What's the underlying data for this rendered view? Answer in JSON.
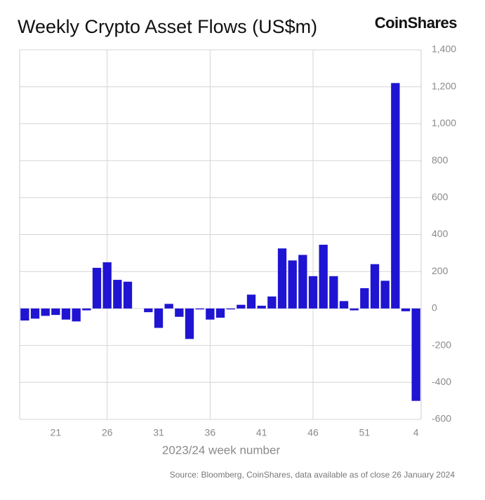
{
  "chart_data": {
    "type": "bar",
    "title": "Weekly Crypto Asset Flows (US$m)",
    "brand": "CoinShares",
    "x_label": "2023/24 week number",
    "source": "Source: Bloomberg, CoinShares, data available as of close 26 January 2024",
    "categories": [
      null,
      null,
      null,
      "21",
      null,
      null,
      null,
      null,
      "26",
      null,
      null,
      null,
      null,
      "31",
      null,
      null,
      null,
      null,
      "36",
      null,
      null,
      null,
      null,
      "41",
      null,
      null,
      null,
      null,
      "46",
      null,
      null,
      null,
      null,
      "51",
      null,
      null,
      null,
      null,
      "4"
    ],
    "values": [
      -65,
      -55,
      -40,
      -35,
      -60,
      -70,
      -10,
      220,
      250,
      155,
      145,
      0,
      -20,
      -105,
      25,
      -45,
      -165,
      -5,
      -60,
      -50,
      -5,
      20,
      75,
      15,
      65,
      325,
      260,
      290,
      175,
      345,
      175,
      40,
      -10,
      110,
      240,
      150,
      1220,
      -15,
      -500
    ],
    "color": "#1f14d2",
    "ylim": [
      -600,
      1400
    ],
    "yticks": [
      -600,
      -400,
      -200,
      0,
      200,
      400,
      600,
      800,
      {
        "value": 1000,
        "label": "1,000"
      },
      {
        "value": 1200,
        "label": "1,200"
      },
      {
        "value": 1400,
        "label": "1,400"
      }
    ],
    "grid": true
  }
}
